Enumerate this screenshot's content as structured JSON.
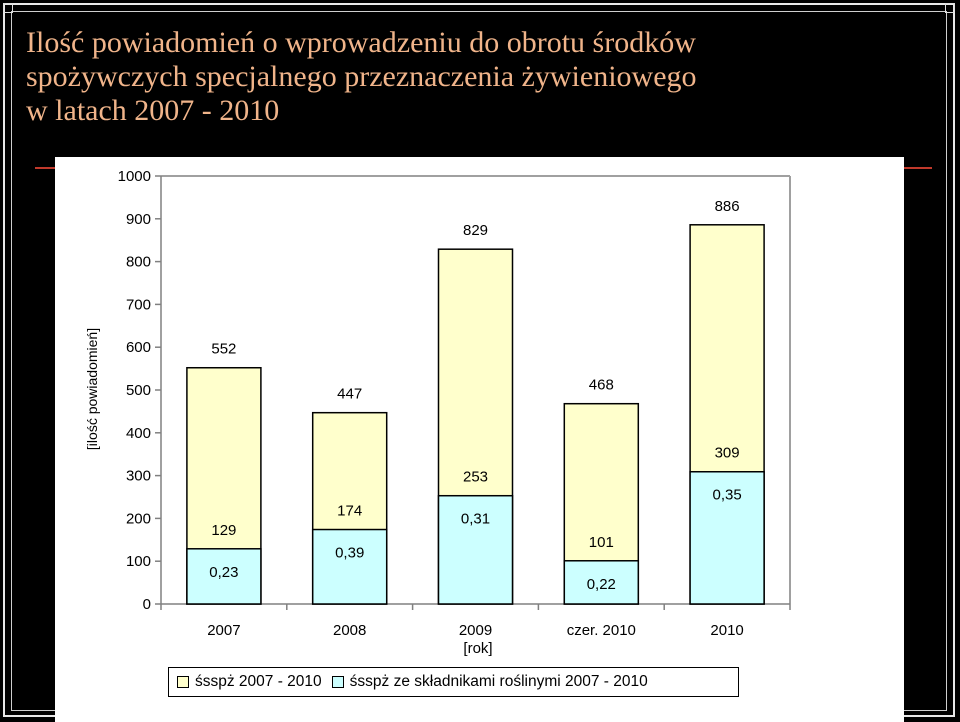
{
  "slide": {
    "title_lines": [
      "Ilość powiadomień o wprowadzeniu do obrotu środków",
      "spożywczych specjalnego przeznaczenia żywieniowego",
      "w latach 2007 - 2010"
    ]
  },
  "chart_data": {
    "type": "bar",
    "stacked": false,
    "ylabel": "[ilość powiadomień]",
    "xlabel": "[rok]",
    "ylim": [
      0,
      1000
    ],
    "yticks": [
      0,
      100,
      200,
      300,
      400,
      500,
      600,
      700,
      800,
      900,
      1000
    ],
    "categories": [
      "2007",
      "2008",
      "2009",
      "czer. 2010",
      "2010"
    ],
    "series": [
      {
        "name": "śsspż 2007 - 2010",
        "values": [
          552,
          447,
          829,
          468,
          886
        ],
        "color": "#ffffcc"
      },
      {
        "name": "śsspż ze składnikami roślinymi 2007 - 2010",
        "values": [
          129,
          174,
          253,
          101,
          309
        ],
        "color": "#ccffff"
      }
    ],
    "ratios": [
      "0,23",
      "0,39",
      "0,31",
      "0,22",
      "0,35"
    ],
    "grid": false,
    "legend_position": "bottom"
  },
  "colors": {
    "background": "#000000",
    "title": "#f0b48a",
    "accent_rule": "#c0392b",
    "panel": "#ffffff",
    "axis": "#808080"
  }
}
